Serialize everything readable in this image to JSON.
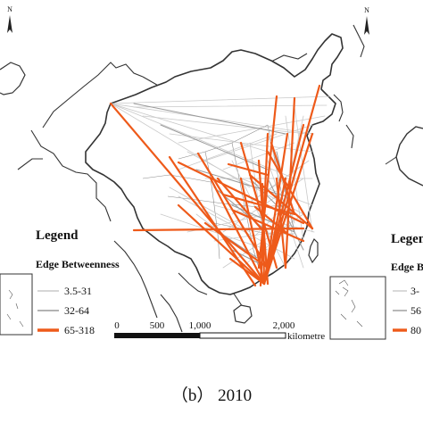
{
  "caption": "（b） 2010",
  "legend": {
    "title": "Legend",
    "subtitle": "Edge Betweenness",
    "classes": [
      {
        "label": "3.5-31",
        "color": "#c9c9c9"
      },
      {
        "label": "32-64",
        "color": "#9a9a9a"
      },
      {
        "label": "65-318",
        "color": "#ee5a1a"
      }
    ]
  },
  "scale_bar": {
    "ticks": [
      "0",
      "500",
      "1,000",
      "2,000"
    ],
    "unit": "kilometre"
  },
  "north_arrow": {
    "label": "N"
  },
  "neighbor_panels": {
    "left": {
      "north_label": "N"
    },
    "right": {
      "north_label": "N",
      "legend_title": "Legen",
      "legend_subtitle": "Edge B",
      "class_labels": [
        "3-",
        "56",
        "80"
      ]
    }
  },
  "colors": {
    "low": "#c9c9c9",
    "mid": "#9a9a9a",
    "high": "#ee5a1a",
    "border": "#333333"
  }
}
